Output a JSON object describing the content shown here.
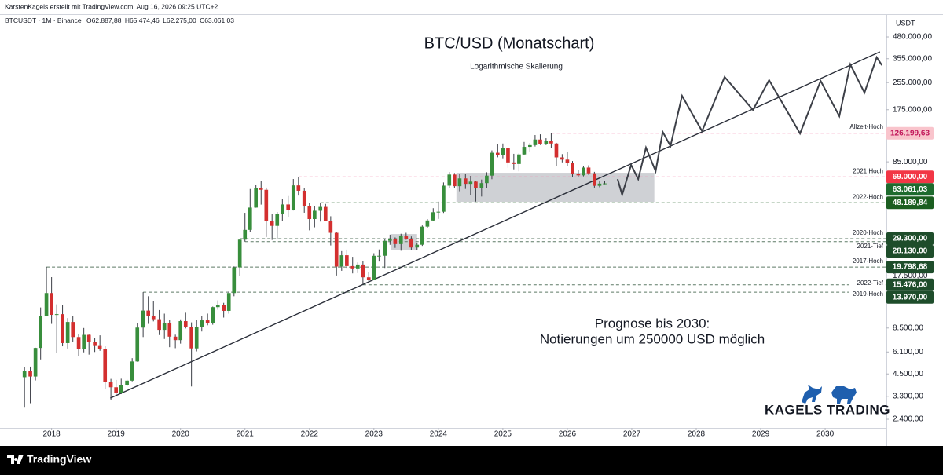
{
  "header": {
    "credit": "KarstenKagels erstellt mit TradingView.com, Aug 16, 2026 09:25 UTC+2",
    "info": [
      "BTCUSDT · 1M · Binance",
      "O62.887,88",
      "H65.474,46",
      "L62.275,00",
      "C63.061,03"
    ]
  },
  "branding": {
    "logo": "KAGELS TRADING"
  },
  "footer": {
    "brand": "TradingView"
  },
  "chart_data": {
    "type": "candlestick",
    "title": "BTC/USD (Monatschart)",
    "subtitle": "Logarithmische Skalierung",
    "axis_unit": "USDT",
    "annotation": [
      "Prognose bis 2030:",
      "Notierungen um 250000 USD möglich"
    ],
    "log": true,
    "up_color": "#388e3c",
    "down_color": "#d32f2f",
    "xlim": [
      2017.2,
      2030.95
    ],
    "xticks": [
      2018,
      2019,
      2020,
      2021,
      2022,
      2023,
      2024,
      2025,
      2026,
      2027,
      2028,
      2029,
      2030
    ],
    "ylim": [
      2130,
      644000
    ],
    "yticks": [
      {
        "value": 480000,
        "label": "480.000,00"
      },
      {
        "value": 355000,
        "label": "355.000,00"
      },
      {
        "value": 255000,
        "label": "255.000,00"
      },
      {
        "value": 175000,
        "label": "175.000,00"
      },
      {
        "value": 85000,
        "label": "85.000,00"
      },
      {
        "value": 17500,
        "label": "17.500,00"
      },
      {
        "value": 8500,
        "label": "8.500,00"
      },
      {
        "value": 6100,
        "label": "6.100,00"
      },
      {
        "value": 4500,
        "label": "4.500,00"
      },
      {
        "value": 3300,
        "label": "3.300,00"
      },
      {
        "value": 2400,
        "label": "2.400,00"
      }
    ],
    "x": [
      2017.58,
      2017.67,
      2017.75,
      2017.83,
      2017.92,
      2018.0,
      2018.08,
      2018.17,
      2018.25,
      2018.33,
      2018.42,
      2018.5,
      2018.58,
      2018.67,
      2018.75,
      2018.83,
      2018.92,
      2019.0,
      2019.08,
      2019.17,
      2019.25,
      2019.33,
      2019.42,
      2019.5,
      2019.58,
      2019.67,
      2019.75,
      2019.83,
      2019.92,
      2020.0,
      2020.08,
      2020.17,
      2020.25,
      2020.33,
      2020.42,
      2020.5,
      2020.58,
      2020.67,
      2020.75,
      2020.83,
      2020.92,
      2021.0,
      2021.08,
      2021.17,
      2021.25,
      2021.33,
      2021.42,
      2021.5,
      2021.58,
      2021.67,
      2021.75,
      2021.83,
      2021.92,
      2022.0,
      2022.08,
      2022.17,
      2022.25,
      2022.33,
      2022.42,
      2022.5,
      2022.58,
      2022.67,
      2022.75,
      2022.83,
      2022.92,
      2023.0,
      2023.08,
      2023.17,
      2023.25,
      2023.33,
      2023.42,
      2023.5,
      2023.58,
      2023.67,
      2023.75,
      2023.83,
      2023.92,
      2024.0,
      2024.08,
      2024.17,
      2024.25,
      2024.33,
      2024.42,
      2024.5,
      2024.58,
      2024.67,
      2024.75,
      2024.83,
      2024.92,
      2025.0,
      2025.08,
      2025.17,
      2025.25,
      2025.33,
      2025.42,
      2025.5,
      2025.58,
      2025.67,
      2025.75,
      2025.83,
      2025.92,
      2026.0,
      2026.08,
      2026.17,
      2026.25,
      2026.33,
      2026.42,
      2026.5,
      2026.58
    ],
    "open": [
      4300,
      4700,
      4340,
      6450,
      10000,
      13800,
      10200,
      10300,
      6900,
      9240,
      7500,
      6390,
      7730,
      7030,
      6630,
      6370,
      4040,
      3740,
      3460,
      3850,
      4100,
      5350,
      8550,
      10820,
      10090,
      9600,
      8290,
      9150,
      7540,
      7190,
      9350,
      8600,
      6410,
      8620,
      9450,
      9140,
      11350,
      11650,
      10780,
      13800,
      19700,
      28920,
      33100,
      45100,
      58800,
      57700,
      37300,
      35000,
      41460,
      47100,
      43800,
      61300,
      56950,
      46200,
      38470,
      43160,
      45510,
      37630,
      31800,
      19930,
      23300,
      20050,
      19420,
      20490,
      17160,
      16540,
      23120,
      23140,
      28460,
      29230,
      27210,
      30470,
      29230,
      25940,
      26960,
      34640,
      37720,
      42280,
      42580,
      61130,
      71280,
      60670,
      67540,
      62680,
      64630,
      58970,
      63330,
      70220,
      96400,
      93580,
      102400,
      84350,
      82550,
      94200,
      104600,
      107150,
      115750,
      108250,
      114050,
      109600,
      90400,
      87650,
      84000,
      71500,
      70500,
      78500,
      72500,
      61000,
      62887.88
    ],
    "high": [
      4950,
      4980,
      6470,
      11300,
      19798.68,
      17200,
      11800,
      11700,
      9750,
      10000,
      7770,
      8500,
      7760,
      7400,
      7680,
      6600,
      4200,
      4140,
      4210,
      4150,
      5600,
      9100,
      13970,
      13200,
      12330,
      10900,
      10370,
      9500,
      7750,
      9580,
      10500,
      9190,
      9460,
      10070,
      10380,
      11440,
      12470,
      12050,
      14100,
      19950,
      29300,
      41950,
      58350,
      61800,
      64850,
      59500,
      41330,
      42400,
      50500,
      52900,
      67000,
      69000,
      59050,
      47990,
      45800,
      48189.84,
      47440,
      40000,
      31980,
      24670,
      25200,
      22800,
      21100,
      21480,
      18400,
      23960,
      25250,
      29180,
      31000,
      29820,
      31390,
      31800,
      30230,
      27480,
      35200,
      38450,
      44700,
      48970,
      63900,
      73800,
      72800,
      71980,
      71950,
      70000,
      65100,
      66500,
      73600,
      99600,
      108350,
      109580,
      102750,
      95000,
      95750,
      111980,
      110400,
      123200,
      124450,
      117900,
      126199.63,
      110600,
      94600,
      97500,
      86000,
      76000,
      80500,
      81000,
      74000,
      64800,
      65474.46
    ],
    "low": [
      2820,
      3000,
      4110,
      5500,
      10000,
      9000,
      6000,
      6600,
      6400,
      7000,
      5750,
      6070,
      5880,
      6100,
      6200,
      3650,
      3150,
      3350,
      3400,
      3800,
      4060,
      5330,
      7500,
      9000,
      9320,
      7710,
      7300,
      6520,
      6430,
      6850,
      8450,
      3780,
      6150,
      8100,
      8830,
      8900,
      10950,
      9820,
      10370,
      13200,
      17570,
      28130,
      32300,
      45000,
      47000,
      30000,
      28800,
      29300,
      37300,
      39600,
      43300,
      53250,
      42000,
      32900,
      34300,
      37150,
      37580,
      26700,
      17600,
      18780,
      19520,
      18120,
      18190,
      15476,
      16260,
      16500,
      21350,
      19550,
      26940,
      25810,
      24800,
      28860,
      25160,
      24900,
      26540,
      34100,
      37600,
      38550,
      41880,
      59000,
      59190,
      56550,
      58400,
      53500,
      49000,
      52550,
      58900,
      66800,
      90500,
      89250,
      78250,
      76600,
      74500,
      93350,
      98200,
      105100,
      107350,
      107250,
      103500,
      80600,
      84400,
      80600,
      69000,
      68500,
      69500,
      71000,
      59500,
      59800,
      62275
    ],
    "close": [
      4700,
      4340,
      6450,
      10000,
      13800,
      10200,
      10300,
      6900,
      9240,
      7500,
      6390,
      7730,
      7030,
      6630,
      6370,
      4040,
      3740,
      3460,
      3850,
      4100,
      5350,
      8550,
      10820,
      10090,
      9600,
      8290,
      9150,
      7540,
      7190,
      9350,
      8600,
      6410,
      8620,
      9450,
      9140,
      11350,
      11650,
      10780,
      13800,
      19700,
      28920,
      33100,
      45100,
      58800,
      57700,
      37300,
      35000,
      41460,
      47100,
      43800,
      61300,
      56950,
      46200,
      38470,
      43160,
      45510,
      37630,
      31800,
      19930,
      23300,
      20050,
      19420,
      20490,
      17160,
      16540,
      23120,
      23140,
      28460,
      29230,
      27210,
      30470,
      29230,
      25940,
      26960,
      34640,
      37720,
      42280,
      42580,
      61130,
      71280,
      60670,
      67540,
      62680,
      64630,
      58970,
      63330,
      70220,
      96400,
      93580,
      102400,
      84350,
      82550,
      94200,
      104600,
      107150,
      115750,
      108250,
      114050,
      109600,
      90400,
      87650,
      84000,
      71500,
      70500,
      78500,
      72500,
      61000,
      62887.88,
      63061.03
    ],
    "trendline": {
      "color": "#2a2e39",
      "x": [
        2018.91,
        2030.85
      ],
      "values": [
        3216,
        390300
      ]
    },
    "forecast": {
      "color": "#3c3f47",
      "x": [
        2026.78,
        2026.85,
        2026.99,
        2027.1,
        2027.22,
        2027.37,
        2027.48,
        2027.6,
        2027.78,
        2028.09,
        2028.44,
        2028.88,
        2029.13,
        2029.61,
        2029.93,
        2030.22,
        2030.39,
        2030.61,
        2030.8,
        2030.88
      ],
      "values": [
        66960,
        53860,
        81460,
        66960,
        103500,
        74640,
        128600,
        105800,
        212200,
        130100,
        275600,
        174500,
        263900,
        125900,
        261000,
        160000,
        328000,
        221600,
        361700,
        324400
      ]
    },
    "zones": [
      {
        "color": "#9598a1",
        "x": [
          2024.28,
          2027.35
        ],
        "values": [
          48850,
          73060
        ]
      },
      {
        "color": "#9598a1",
        "x": [
          2023.26,
          2023.67
        ],
        "values": [
          25140,
          31250
        ]
      }
    ],
    "levels": [
      {
        "name": "Allzeit-Hoch",
        "value": 126199.63,
        "label": "126.199,63",
        "start": 2025.75,
        "color": "#f48fb1",
        "box": "#f9c4cc",
        "text_color": "#c2185b"
      },
      {
        "name": "2021 Hoch",
        "value": 69000,
        "label": "69.000,00",
        "start": 2021.83,
        "color": "#f48fb1",
        "box": "#f23645",
        "text_color": "#ffffff"
      },
      {
        "name": "2022-Hoch",
        "value": 48189.84,
        "label": "48.189,84",
        "start": 2022.17,
        "color": "#1b5e20",
        "box": "#1b5e20",
        "text_color": "#ffffff"
      },
      {
        "name": "2020-Hoch",
        "value": 29300,
        "label": "29.300,00",
        "start": 2020.92,
        "color": "#5d7a66",
        "box": "#1e4d2b",
        "text_color": "#ffffff"
      },
      {
        "name": "2021-Tief",
        "value": 28130,
        "label": "28.130,00",
        "start": 2021.0,
        "color": "#5d7a66",
        "box": "#1e4d2b",
        "text_color": "#ffffff"
      },
      {
        "name": "2017-Hoch",
        "value": 19798.68,
        "label": "19.798,68",
        "start": 2017.92,
        "color": "#5d7a66",
        "box": "#1e4d2b",
        "text_color": "#ffffff"
      },
      {
        "name": "2022-Tief",
        "value": 15476,
        "label": "15.476,00",
        "start": 2022.83,
        "color": "#5d7a66",
        "box": "#1e4d2b",
        "text_color": "#ffffff"
      },
      {
        "name": "2019-Hoch",
        "value": 13970,
        "label": "13.970,00",
        "start": 2019.42,
        "color": "#5d7a66",
        "box": "#1e4d2b",
        "text_color": "#ffffff"
      }
    ],
    "current": {
      "value": 63061.03,
      "label": "63.061,03",
      "box": "#1e6b2e",
      "text_color": "#ffffff"
    }
  }
}
